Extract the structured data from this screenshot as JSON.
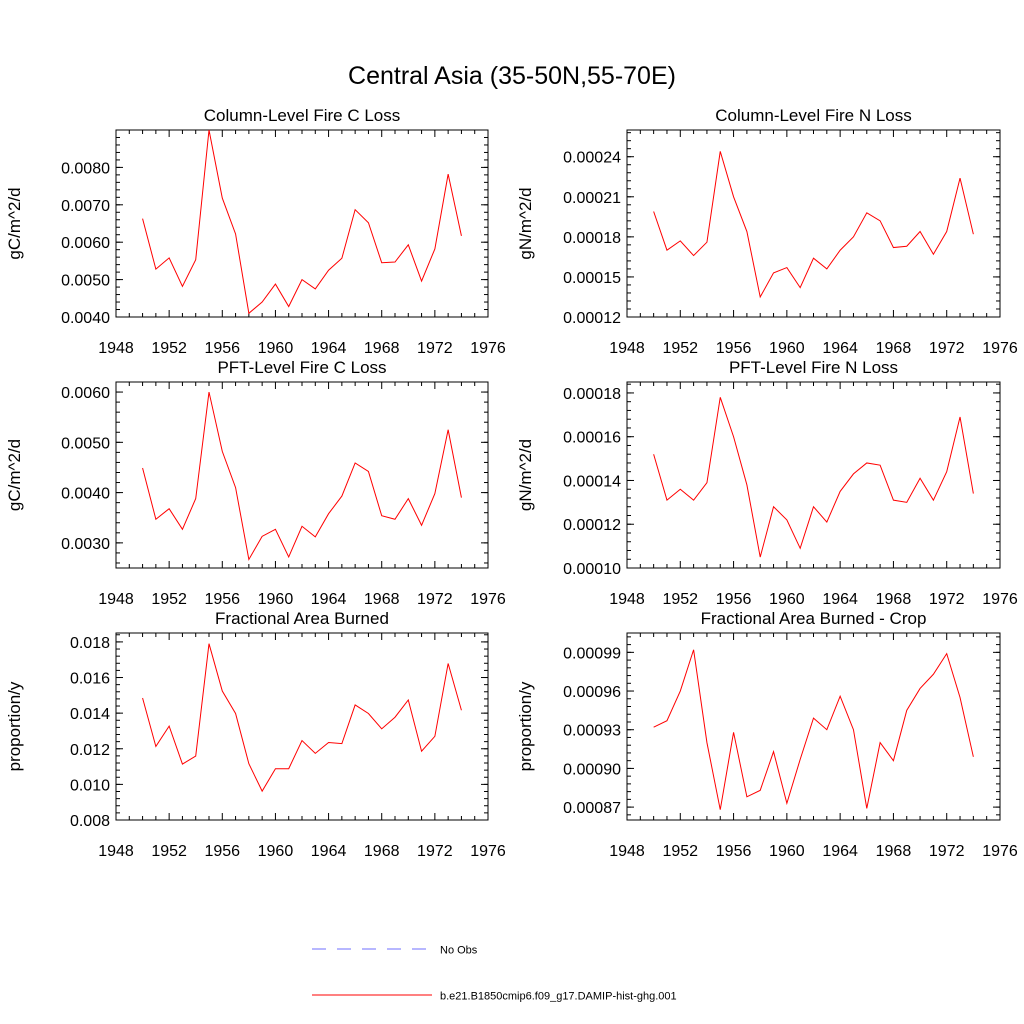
{
  "figure_title": "Central Asia (35-50N,55-70E)",
  "colors": {
    "model": "#ff0000",
    "obs": "#6f6fff",
    "axis": "#000000"
  },
  "legend": {
    "obs_label": "No Obs",
    "model_label": "b.e21.B1850cmip6.f09_g17.DAMIP-hist-ghg.001"
  },
  "chart_data": [
    {
      "type": "line",
      "title": "Column-Level Fire C Loss",
      "ylabel": "gC/m^2/d",
      "xlim": [
        1948,
        1976
      ],
      "ylim": [
        0.004,
        0.009
      ],
      "xticks": [
        1948,
        1952,
        1956,
        1960,
        1964,
        1968,
        1972,
        1976
      ],
      "yticks": [
        0.004,
        0.005,
        0.006,
        0.007,
        0.008
      ],
      "ytick_labels": [
        "0.0040",
        "0.0050",
        "0.0060",
        "0.0070",
        "0.0080"
      ],
      "x": [
        1950,
        1951,
        1952,
        1953,
        1954,
        1955,
        1956,
        1957,
        1958,
        1959,
        1960,
        1961,
        1962,
        1963,
        1964,
        1965,
        1966,
        1967,
        1968,
        1969,
        1970,
        1971,
        1972,
        1973,
        1974
      ],
      "series": [
        {
          "name": "b.e21.B1850cmip6.f09_g17.DAMIP-hist-ghg.001",
          "values": [
            0.00663,
            0.00528,
            0.00558,
            0.00482,
            0.00553,
            0.009,
            0.00718,
            0.00622,
            0.0041,
            0.0044,
            0.00488,
            0.00428,
            0.005,
            0.00475,
            0.00525,
            0.00557,
            0.00687,
            0.00652,
            0.00545,
            0.00547,
            0.00593,
            0.00496,
            0.00582,
            0.00782,
            0.00617
          ]
        }
      ]
    },
    {
      "type": "line",
      "title": "Column-Level Fire N Loss",
      "ylabel": "gN/m^2/d",
      "xlim": [
        1948,
        1976
      ],
      "ylim": [
        0.00012,
        0.00026
      ],
      "xticks": [
        1948,
        1952,
        1956,
        1960,
        1964,
        1968,
        1972,
        1976
      ],
      "yticks": [
        0.00012,
        0.00015,
        0.00018,
        0.00021,
        0.00024
      ],
      "ytick_labels": [
        "0.00012",
        "0.00015",
        "0.00018",
        "0.00021",
        "0.00024"
      ],
      "x": [
        1950,
        1951,
        1952,
        1953,
        1954,
        1955,
        1956,
        1957,
        1958,
        1959,
        1960,
        1961,
        1962,
        1963,
        1964,
        1965,
        1966,
        1967,
        1968,
        1969,
        1970,
        1971,
        1972,
        1973,
        1974
      ],
      "series": [
        {
          "name": "b.e21.B1850cmip6.f09_g17.DAMIP-hist-ghg.001",
          "values": [
            0.000199,
            0.00017,
            0.000177,
            0.000166,
            0.000176,
            0.000244,
            0.00021,
            0.000184,
            0.000135,
            0.000153,
            0.000157,
            0.000142,
            0.000164,
            0.000156,
            0.00017,
            0.00018,
            0.000198,
            0.000192,
            0.000172,
            0.000173,
            0.000184,
            0.000167,
            0.000184,
            0.000224,
            0.000182
          ]
        }
      ]
    },
    {
      "type": "line",
      "title": "PFT-Level Fire C Loss",
      "ylabel": "gC/m^2/d",
      "xlim": [
        1948,
        1976
      ],
      "ylim": [
        0.0025,
        0.0062
      ],
      "xticks": [
        1948,
        1952,
        1956,
        1960,
        1964,
        1968,
        1972,
        1976
      ],
      "yticks": [
        0.003,
        0.004,
        0.005,
        0.006
      ],
      "ytick_labels": [
        "0.0030",
        "0.0040",
        "0.0050",
        "0.0060"
      ],
      "x": [
        1950,
        1951,
        1952,
        1953,
        1954,
        1955,
        1956,
        1957,
        1958,
        1959,
        1960,
        1961,
        1962,
        1963,
        1964,
        1965,
        1966,
        1967,
        1968,
        1969,
        1970,
        1971,
        1972,
        1973,
        1974
      ],
      "series": [
        {
          "name": "b.e21.B1850cmip6.f09_g17.DAMIP-hist-ghg.001",
          "values": [
            0.00449,
            0.00347,
            0.00368,
            0.00327,
            0.00388,
            0.006,
            0.00482,
            0.0041,
            0.00267,
            0.00313,
            0.00327,
            0.00272,
            0.00333,
            0.00312,
            0.00358,
            0.00393,
            0.00459,
            0.00442,
            0.00354,
            0.00347,
            0.00388,
            0.00335,
            0.00398,
            0.00525,
            0.0039
          ]
        }
      ]
    },
    {
      "type": "line",
      "title": "PFT-Level Fire N Loss",
      "ylabel": "gN/m^2/d",
      "xlim": [
        1948,
        1976
      ],
      "ylim": [
        0.0001,
        0.000185
      ],
      "xticks": [
        1948,
        1952,
        1956,
        1960,
        1964,
        1968,
        1972,
        1976
      ],
      "yticks": [
        0.0001,
        0.00012,
        0.00014,
        0.00016,
        0.00018
      ],
      "ytick_labels": [
        "0.00010",
        "0.00012",
        "0.00014",
        "0.00016",
        "0.00018"
      ],
      "x": [
        1950,
        1951,
        1952,
        1953,
        1954,
        1955,
        1956,
        1957,
        1958,
        1959,
        1960,
        1961,
        1962,
        1963,
        1964,
        1965,
        1966,
        1967,
        1968,
        1969,
        1970,
        1971,
        1972,
        1973,
        1974
      ],
      "series": [
        {
          "name": "b.e21.B1850cmip6.f09_g17.DAMIP-hist-ghg.001",
          "values": [
            0.000152,
            0.000131,
            0.000136,
            0.000131,
            0.000139,
            0.000178,
            0.00016,
            0.000138,
            0.000105,
            0.000128,
            0.000122,
            0.000109,
            0.000128,
            0.000121,
            0.000135,
            0.000143,
            0.000148,
            0.000147,
            0.000131,
            0.00013,
            0.000141,
            0.000131,
            0.000144,
            0.000169,
            0.000134
          ]
        }
      ]
    },
    {
      "type": "line",
      "title": "Fractional Area Burned",
      "ylabel": "proportion/y",
      "xlim": [
        1948,
        1976
      ],
      "ylim": [
        0.008,
        0.0185
      ],
      "xticks": [
        1948,
        1952,
        1956,
        1960,
        1964,
        1968,
        1972,
        1976
      ],
      "yticks": [
        0.008,
        0.01,
        0.012,
        0.014,
        0.016,
        0.018
      ],
      "ytick_labels": [
        "0.008",
        "0.010",
        "0.012",
        "0.014",
        "0.016",
        "0.018"
      ],
      "x": [
        1950,
        1951,
        1952,
        1953,
        1954,
        1955,
        1956,
        1957,
        1958,
        1959,
        1960,
        1961,
        1962,
        1963,
        1964,
        1965,
        1966,
        1967,
        1968,
        1969,
        1970,
        1971,
        1972,
        1973,
        1974
      ],
      "series": [
        {
          "name": "b.e21.B1850cmip6.f09_g17.DAMIP-hist-ghg.001",
          "values": [
            0.01485,
            0.01213,
            0.01327,
            0.01114,
            0.01159,
            0.0179,
            0.01524,
            0.01398,
            0.01116,
            0.00962,
            0.01088,
            0.01088,
            0.01246,
            0.01174,
            0.01235,
            0.01229,
            0.01446,
            0.01398,
            0.01312,
            0.01377,
            0.01474,
            0.01186,
            0.0127,
            0.01679,
            0.01416
          ]
        }
      ]
    },
    {
      "type": "line",
      "title": "Fractional Area Burned - Crop",
      "ylabel": "proportion/y",
      "xlim": [
        1948,
        1976
      ],
      "ylim": [
        0.00086,
        0.001005
      ],
      "xticks": [
        1948,
        1952,
        1956,
        1960,
        1964,
        1968,
        1972,
        1976
      ],
      "yticks": [
        0.00087,
        0.0009,
        0.00093,
        0.00096,
        0.00099
      ],
      "ytick_labels": [
        "0.00087",
        "0.00090",
        "0.00093",
        "0.00096",
        "0.00099"
      ],
      "x": [
        1950,
        1951,
        1952,
        1953,
        1954,
        1955,
        1956,
        1957,
        1958,
        1959,
        1960,
        1961,
        1962,
        1963,
        1964,
        1965,
        1966,
        1967,
        1968,
        1969,
        1970,
        1971,
        1972,
        1973,
        1974
      ],
      "series": [
        {
          "name": "b.e21.B1850cmip6.f09_g17.DAMIP-hist-ghg.001",
          "values": [
            0.000932,
            0.000937,
            0.00096,
            0.000992,
            0.00092,
            0.000868,
            0.000928,
            0.000878,
            0.000883,
            0.000913,
            0.000873,
            0.000907,
            0.000939,
            0.00093,
            0.000956,
            0.00093,
            0.000869,
            0.00092,
            0.000906,
            0.000945,
            0.000962,
            0.000973,
            0.000989,
            0.000955,
            0.000909
          ]
        }
      ]
    }
  ]
}
